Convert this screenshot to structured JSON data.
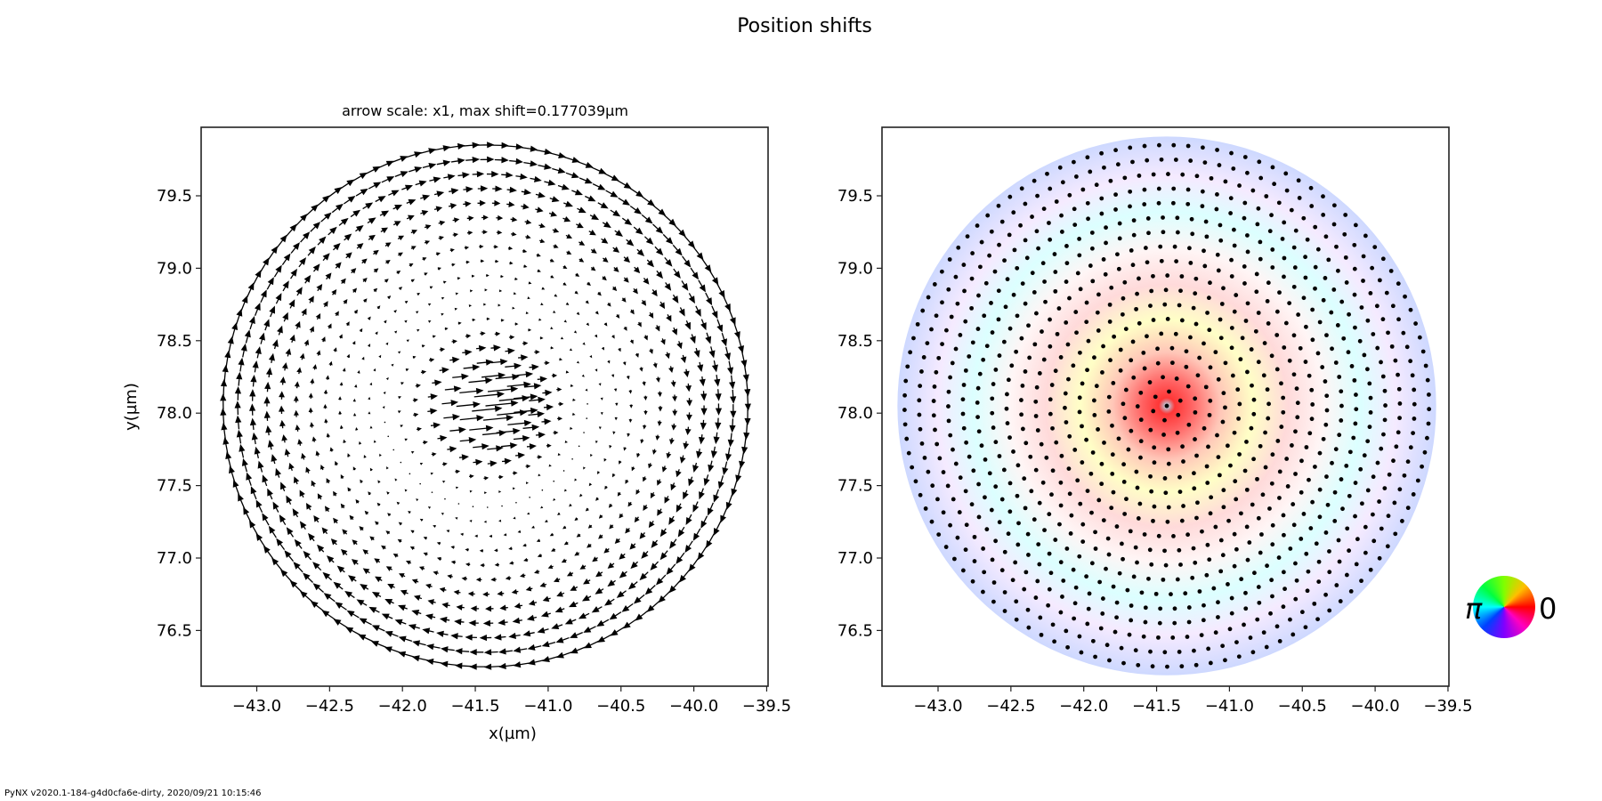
{
  "chart_data": [
    {
      "type": "quiver",
      "title": "arrow scale: x1, max shift=0.177039µm",
      "xlabel": "x(µm)",
      "ylabel": "y(µm)",
      "xlim": [
        -43.4,
        -39.45
      ],
      "ylim": [
        76.1,
        79.95
      ],
      "xticks": [
        "−43.0",
        "−42.5",
        "−42.0",
        "−41.5",
        "−41.0",
        "−40.5",
        "−40.0",
        "−39.5"
      ],
      "xtick_values": [
        -43.0,
        -42.5,
        -42.0,
        -41.5,
        -41.0,
        -40.5,
        -40.0,
        -39.5
      ],
      "yticks": [
        "79.5",
        "79.0",
        "78.5",
        "78.0",
        "77.5",
        "77.0",
        "76.5"
      ],
      "ytick_values": [
        79.5,
        79.0,
        78.5,
        78.0,
        77.5,
        77.0,
        76.5
      ],
      "scan_center": [
        -41.43,
        78.05
      ],
      "scan_radius": 1.8,
      "max_shift": 0.177039,
      "arrow_color": "#000000"
    },
    {
      "type": "scatter",
      "xticks": [
        "−43.0",
        "−42.5",
        "−42.0",
        "−41.5",
        "−41.0",
        "−40.5",
        "−40.0",
        "−39.5"
      ],
      "xtick_values": [
        -43.0,
        -42.5,
        -42.0,
        -41.5,
        -41.0,
        -40.5,
        -40.0,
        -39.5
      ],
      "yticks": [
        "79.5",
        "79.0",
        "78.5",
        "78.0",
        "77.5",
        "77.0",
        "76.5"
      ],
      "ytick_values": [
        79.5,
        79.0,
        78.5,
        78.0,
        77.5,
        77.0,
        76.5
      ],
      "xlim": [
        -43.4,
        -39.45
      ],
      "ylim": [
        76.1,
        79.95
      ],
      "background": "phase-colored shift map",
      "marker_color": "#000000"
    }
  ],
  "suptitle": "Position shifts",
  "colorwheel": {
    "left_label": "π",
    "right_label": "0"
  },
  "footer": "PyNX v2020.1-184-g4d0cfa6e-dirty, 2020/09/21 10:15:46"
}
